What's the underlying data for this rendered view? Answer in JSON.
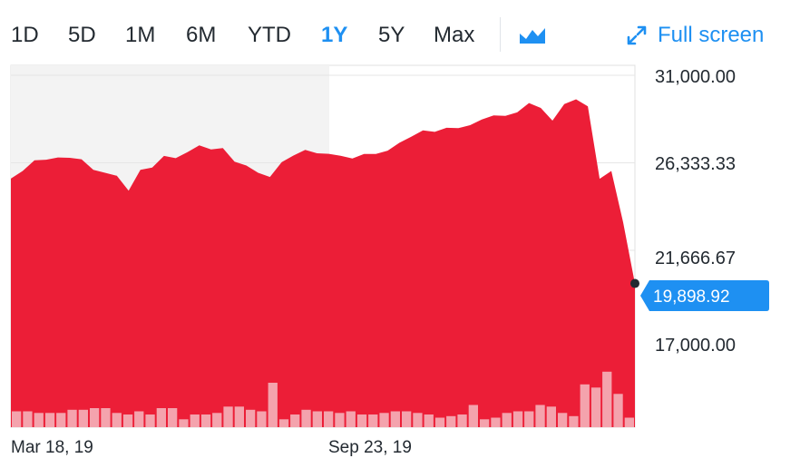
{
  "toolbar": {
    "ranges": [
      {
        "label": "1D",
        "active": false
      },
      {
        "label": "5D",
        "active": false
      },
      {
        "label": "1M",
        "active": false
      },
      {
        "label": "6M",
        "active": false
      },
      {
        "label": "YTD",
        "active": false
      },
      {
        "label": "1Y",
        "active": true
      },
      {
        "label": "5Y",
        "active": false
      },
      {
        "label": "Max",
        "active": false
      }
    ],
    "chart_type_icon": "mountain-chart-icon",
    "fullscreen_icon": "expand-arrows-icon",
    "fullscreen_label": "Full screen"
  },
  "colors": {
    "accent": "#1e90f2",
    "area": "#ec1e37",
    "volume": "#f4a3ad",
    "shade": "#f3f3f3",
    "grid": "#e6e6e6"
  },
  "chart_data": {
    "type": "area",
    "y_ticks": [
      "31,000.00",
      "26,333.33",
      "21,666.67",
      "17,000.00"
    ],
    "x_ticks": [
      "Mar 18, 19",
      "Sep 23, 19"
    ],
    "current_value": "19,898.92",
    "ylim": [
      17000,
      31000
    ],
    "series": [
      {
        "values": [
          25490,
          25900,
          26470,
          26500,
          26620,
          26600,
          26520,
          25960,
          25800,
          25640,
          24850,
          25960,
          26080,
          26700,
          26580,
          26900,
          27260,
          27050,
          27120,
          26390,
          26190,
          25800,
          25580,
          26370,
          26720,
          27020,
          26840,
          26810,
          26710,
          26560,
          26800,
          26800,
          26980,
          27400,
          27720,
          28060,
          27980,
          28200,
          28180,
          28340,
          28640,
          28860,
          28840,
          29020,
          29520,
          29260,
          28580,
          29460,
          29720,
          29340,
          25480,
          25900,
          23160,
          19898.92
        ]
      },
      {
        "name": "Volume",
        "values": [
          1.0,
          1.0,
          0.9,
          0.9,
          0.9,
          1.1,
          1.1,
          1.2,
          1.2,
          0.9,
          0.8,
          1.0,
          0.8,
          1.2,
          1.2,
          0.5,
          0.8,
          0.8,
          0.9,
          1.3,
          1.3,
          1.1,
          1.0,
          2.8,
          0.5,
          0.8,
          1.1,
          1.0,
          1.0,
          0.9,
          1.0,
          0.8,
          0.8,
          0.9,
          1.0,
          1.0,
          0.9,
          0.8,
          0.6,
          0.7,
          0.8,
          1.4,
          0.5,
          0.6,
          0.9,
          1.0,
          1.0,
          1.4,
          1.3,
          0.9,
          0.7,
          2.7,
          2.5,
          3.5,
          2.1,
          0.6
        ]
      }
    ]
  }
}
